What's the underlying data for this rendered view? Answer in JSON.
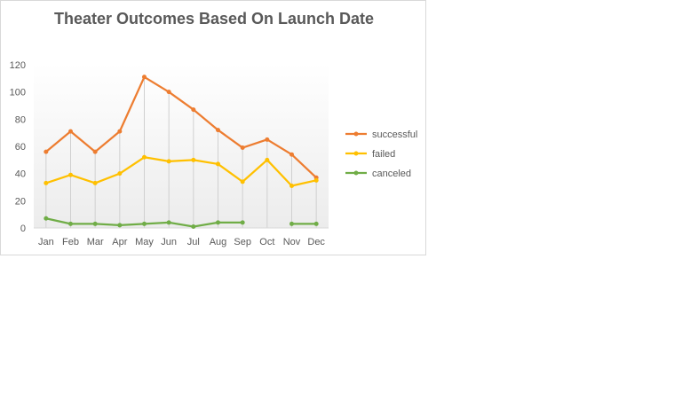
{
  "chart_data": {
    "type": "line",
    "title": "Theater Outcomes Based On Launch Date",
    "categories": [
      "Jan",
      "Feb",
      "Mar",
      "Apr",
      "May",
      "Jun",
      "Jul",
      "Aug",
      "Sep",
      "Oct",
      "Nov",
      "Dec"
    ],
    "series": [
      {
        "name": "successful",
        "color": "#ed7d31",
        "values": [
          56,
          71,
          56,
          71,
          111,
          100,
          87,
          72,
          59,
          65,
          54,
          37
        ]
      },
      {
        "name": "failed",
        "color": "#ffc000",
        "values": [
          33,
          39,
          33,
          40,
          52,
          49,
          50,
          47,
          34,
          50,
          31,
          35
        ]
      },
      {
        "name": "canceled",
        "color": "#70ad47",
        "values": [
          7,
          3,
          3,
          2,
          3,
          4,
          1,
          4,
          4,
          null,
          3,
          3
        ]
      }
    ],
    "ylim": [
      0,
      120
    ],
    "yticks": [
      0,
      20,
      40,
      60,
      80,
      100,
      120
    ],
    "xlabel": "",
    "ylabel": "",
    "legend": "right",
    "grid": false,
    "drop_lines": true
  }
}
